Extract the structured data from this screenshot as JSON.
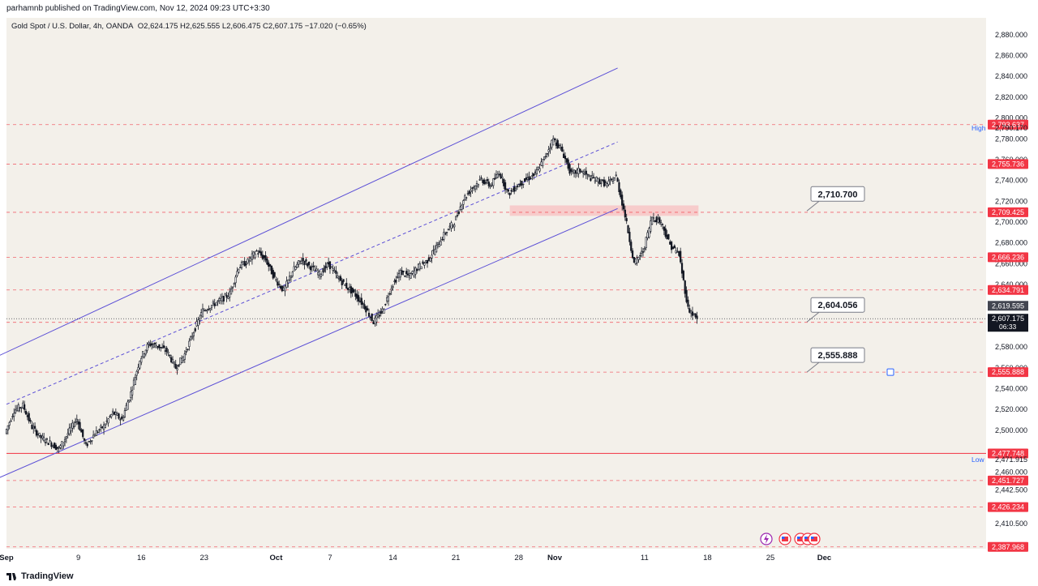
{
  "publish_info": "parhamnb published on TradingView.com, Nov 12, 2024 09:23 UTC+3:30",
  "legend": {
    "symbol": "Gold Spot / U.S. Dollar, 4h, OANDA",
    "ohlc": "O2,624.175  H2,625.555  L2,606.475  C2,607.175  −17.020 (−0.65%)"
  },
  "footer": {
    "brand": "TradingView"
  },
  "colors": {
    "plot_bg": "#f3f0ea",
    "candle_up": "#ffffff",
    "candle_down": "#131722",
    "level_line": "#f23645",
    "channel": "#5b4fd6",
    "zone": "#f7c6c6"
  },
  "icons": [
    "lightning-icon",
    "us-flag-event-icon",
    "us-flag-event-icon",
    "us-flag-event-icon",
    "us-flag-event-icon"
  ],
  "chart_data": {
    "type": "candlestick",
    "title": "Gold Spot / U.S. Dollar, 4h, OANDA",
    "ylim": [
      2380,
      2890
    ],
    "x_range_days": [
      0,
      109
    ],
    "x_ticks": [
      {
        "label": "Sep",
        "day": 0
      },
      {
        "label": "9",
        "day": 8
      },
      {
        "label": "16",
        "day": 15
      },
      {
        "label": "23",
        "day": 22
      },
      {
        "label": "Oct",
        "day": 30
      },
      {
        "label": "7",
        "day": 36
      },
      {
        "label": "14",
        "day": 43
      },
      {
        "label": "21",
        "day": 50
      },
      {
        "label": "28",
        "day": 57
      },
      {
        "label": "Nov",
        "day": 61
      },
      {
        "label": "11",
        "day": 71
      },
      {
        "label": "18",
        "day": 78
      },
      {
        "label": "25",
        "day": 85
      },
      {
        "label": "Dec",
        "day": 91
      }
    ],
    "y_ticks": [
      "2,880.000",
      "2,860.000",
      "2,840.000",
      "2,820.000",
      "2,800.000",
      "2,780.000",
      "2,760.000",
      "2,740.000",
      "2,720.000",
      "2,700.000",
      "2,680.000",
      "2,660.000",
      "2,640.000",
      "2,620.000",
      "2,600.000",
      "2,580.000",
      "2,560.000",
      "2,540.000",
      "2,520.000",
      "2,500.000",
      "2,460.000",
      "2,442.500",
      "2,410.500"
    ],
    "horizontal_levels": [
      "2,793.637",
      "2,755.736",
      "2,709.425",
      "2,666.236",
      "2,634.791",
      "2,603.716",
      "2,555.888",
      "2,477.748",
      "2,451.727",
      "2,426.234",
      "2,387.968"
    ],
    "solid_level": "2,477.748",
    "high_label": {
      "tag": "High",
      "value": "2,790.170"
    },
    "low_label": {
      "tag": "Low",
      "value": "2,471.915"
    },
    "prev_close_label": "2,619.595",
    "last_price_label": "2,607.175",
    "countdown": "06:33",
    "callouts": [
      "2,710.700",
      "2,604.056",
      "2,555.888"
    ],
    "channel": {
      "upper": [
        [
          -2,
          2567
        ],
        [
          68,
          2848
        ]
      ],
      "middle_dashed": [
        [
          0,
          2525
        ],
        [
          68,
          2777
        ]
      ],
      "lower": [
        [
          -2,
          2450
        ],
        [
          68,
          2713
        ]
      ]
    },
    "resistance_zone": {
      "day_from": 56,
      "day_to": 77,
      "price_from": 2706,
      "price_to": 2716
    },
    "close_path": [
      [
        0,
        2497
      ],
      [
        1,
        2519
      ],
      [
        2,
        2524
      ],
      [
        3,
        2503
      ],
      [
        4,
        2493
      ],
      [
        5,
        2488
      ],
      [
        6,
        2482
      ],
      [
        7,
        2497
      ],
      [
        8,
        2511
      ],
      [
        9,
        2485
      ],
      [
        10,
        2497
      ],
      [
        11,
        2504
      ],
      [
        12,
        2517
      ],
      [
        13,
        2510
      ],
      [
        14,
        2536
      ],
      [
        15,
        2568
      ],
      [
        16,
        2583
      ],
      [
        17,
        2581
      ],
      [
        18,
        2576
      ],
      [
        19,
        2560
      ],
      [
        20,
        2573
      ],
      [
        21,
        2595
      ],
      [
        22,
        2615
      ],
      [
        23,
        2620
      ],
      [
        24,
        2625
      ],
      [
        25,
        2631
      ],
      [
        26,
        2657
      ],
      [
        27,
        2662
      ],
      [
        28,
        2672
      ],
      [
        29,
        2664
      ],
      [
        30,
        2646
      ],
      [
        31,
        2634
      ],
      [
        32,
        2653
      ],
      [
        33,
        2664
      ],
      [
        34,
        2657
      ],
      [
        35,
        2650
      ],
      [
        36,
        2660
      ],
      [
        37,
        2647
      ],
      [
        38,
        2638
      ],
      [
        39,
        2630
      ],
      [
        40,
        2619
      ],
      [
        41,
        2604
      ],
      [
        42,
        2615
      ],
      [
        43,
        2638
      ],
      [
        44,
        2652
      ],
      [
        45,
        2648
      ],
      [
        46,
        2657
      ],
      [
        47,
        2663
      ],
      [
        48,
        2676
      ],
      [
        49,
        2690
      ],
      [
        50,
        2700
      ],
      [
        51,
        2722
      ],
      [
        52,
        2733
      ],
      [
        53,
        2741
      ],
      [
        54,
        2735
      ],
      [
        55,
        2748
      ],
      [
        56,
        2727
      ],
      [
        57,
        2735
      ],
      [
        58,
        2741
      ],
      [
        59,
        2746
      ],
      [
        60,
        2761
      ],
      [
        61,
        2780
      ],
      [
        62,
        2768
      ],
      [
        63,
        2746
      ],
      [
        64,
        2750
      ],
      [
        65,
        2743
      ],
      [
        66,
        2740
      ],
      [
        67,
        2736
      ],
      [
        68,
        2744
      ],
      [
        69,
        2706
      ],
      [
        70,
        2660
      ],
      [
        71,
        2672
      ],
      [
        72,
        2705
      ],
      [
        73,
        2700
      ],
      [
        74,
        2678
      ],
      [
        75,
        2669
      ],
      [
        76,
        2617
      ],
      [
        77,
        2607
      ]
    ]
  }
}
